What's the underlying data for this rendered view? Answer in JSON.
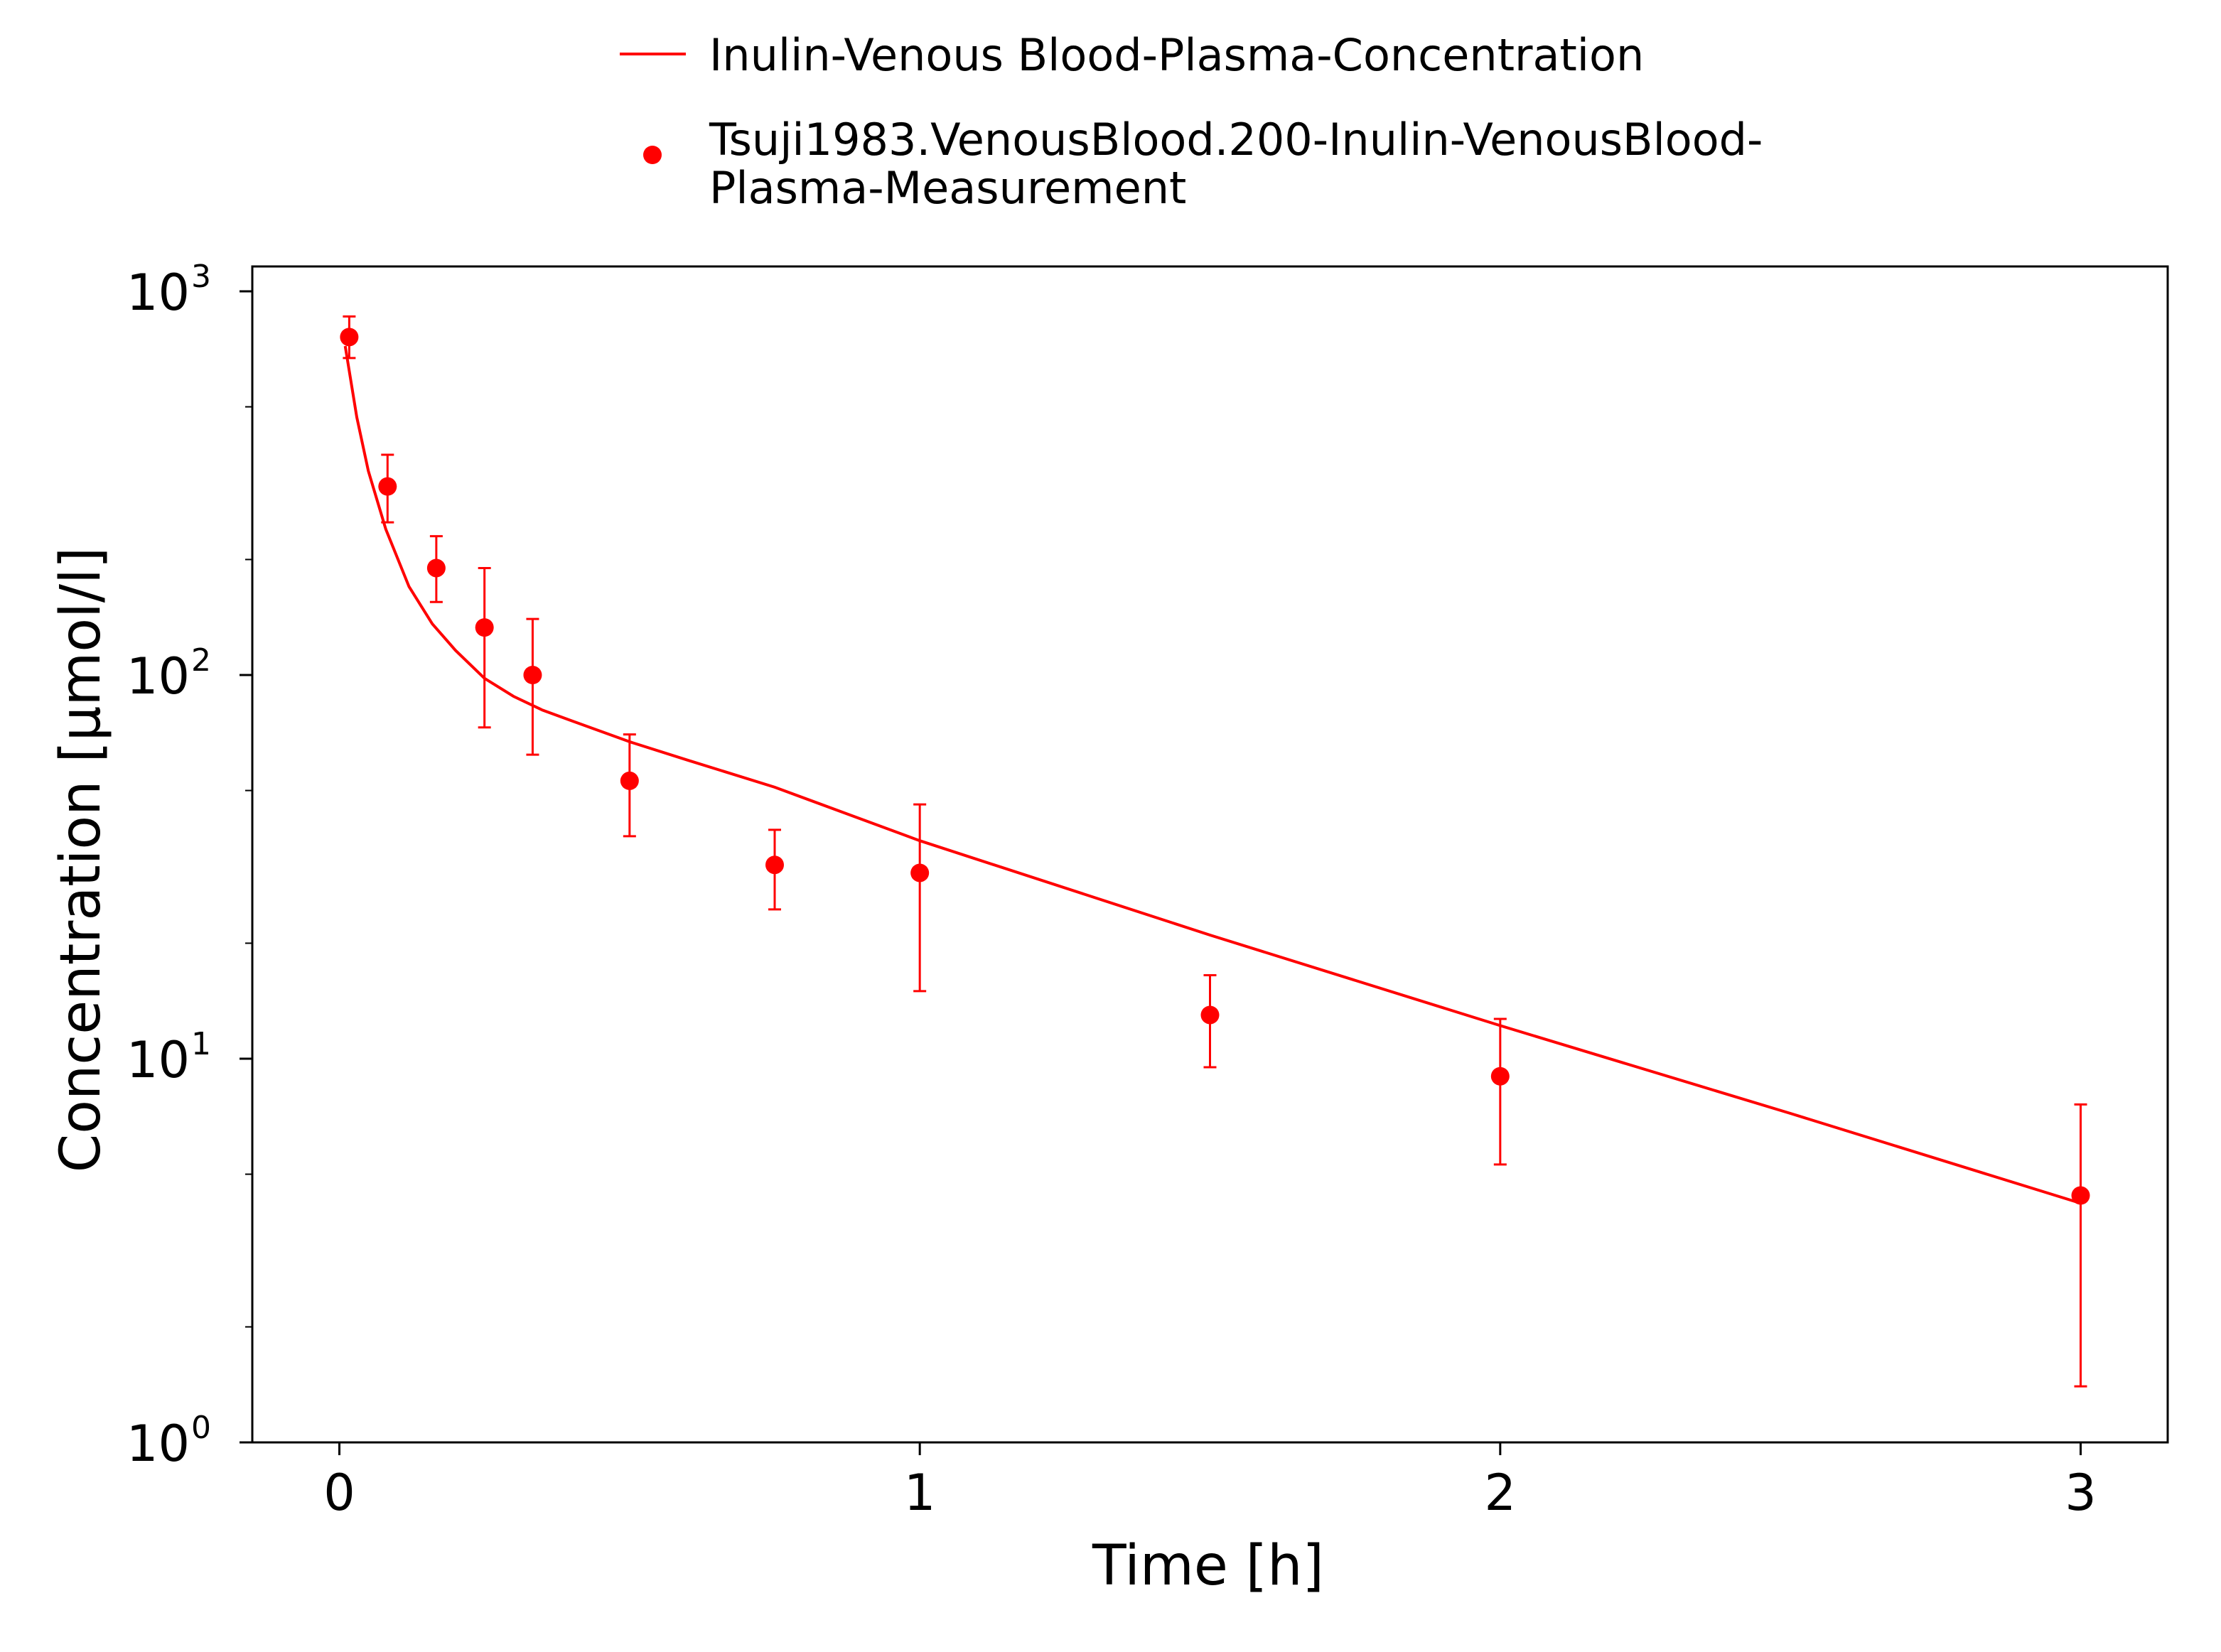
{
  "chart_data": {
    "type": "line",
    "xlabel": "Time [h]",
    "ylabel": "Concentration [µmol/l]",
    "xlim": [
      -0.15,
      3.15
    ],
    "ylim": [
      1,
      1000
    ],
    "yscale": "log",
    "x_ticks": [
      {
        "value": 0,
        "label": "0"
      },
      {
        "value": 1,
        "label": "1"
      },
      {
        "value": 2,
        "label": "2"
      },
      {
        "value": 3,
        "label": "3"
      }
    ],
    "y_ticks": [
      {
        "value": 1,
        "base": "10",
        "exp": "0"
      },
      {
        "value": 10,
        "base": "10",
        "exp": "1"
      },
      {
        "value": 100,
        "base": "10",
        "exp": "2"
      },
      {
        "value": 1000,
        "base": "10",
        "exp": "3"
      }
    ],
    "grid": false,
    "legend_position": "top-center",
    "series": [
      {
        "name": "Inulin-Venous Blood-Plasma-Concentration",
        "kind": "line",
        "color": "#ff0000",
        "x": [
          0.01,
          0.03,
          0.05,
          0.08,
          0.12,
          0.16,
          0.2,
          0.25,
          0.3,
          0.35,
          0.4,
          0.5,
          0.6,
          0.75,
          1.0,
          1.5,
          2.0,
          2.5,
          3.0
        ],
        "y": [
          720,
          470,
          340,
          240,
          170,
          136,
          116,
          98,
          88,
          81,
          76,
          67,
          60,
          51,
          37,
          21,
          12.2,
          7.2,
          4.2
        ]
      },
      {
        "name_lines": [
          "Tsuji1983.VenousBlood.200-Inulin-VenousBlood-",
          "Plasma-Measurement"
        ],
        "kind": "scatter",
        "color": "#ff0000",
        "points": [
          {
            "x": 0.017,
            "y": 760,
            "lo": 670,
            "hi": 860
          },
          {
            "x": 0.083,
            "y": 310,
            "lo": 250,
            "hi": 375
          },
          {
            "x": 0.167,
            "y": 190,
            "lo": 155,
            "hi": 230
          },
          {
            "x": 0.25,
            "y": 133,
            "lo": 73,
            "hi": 190
          },
          {
            "x": 0.333,
            "y": 100,
            "lo": 62,
            "hi": 140
          },
          {
            "x": 0.5,
            "y": 53,
            "lo": 38,
            "hi": 70
          },
          {
            "x": 0.75,
            "y": 32,
            "lo": 24.5,
            "hi": 39.5
          },
          {
            "x": 1.0,
            "y": 30.5,
            "lo": 15,
            "hi": 46
          },
          {
            "x": 1.5,
            "y": 13,
            "lo": 9.5,
            "hi": 16.5
          },
          {
            "x": 2.0,
            "y": 9,
            "lo": 5.3,
            "hi": 12.7
          },
          {
            "x": 3.0,
            "y": 4.4,
            "lo": 1.4,
            "hi": 7.6
          }
        ]
      }
    ]
  }
}
